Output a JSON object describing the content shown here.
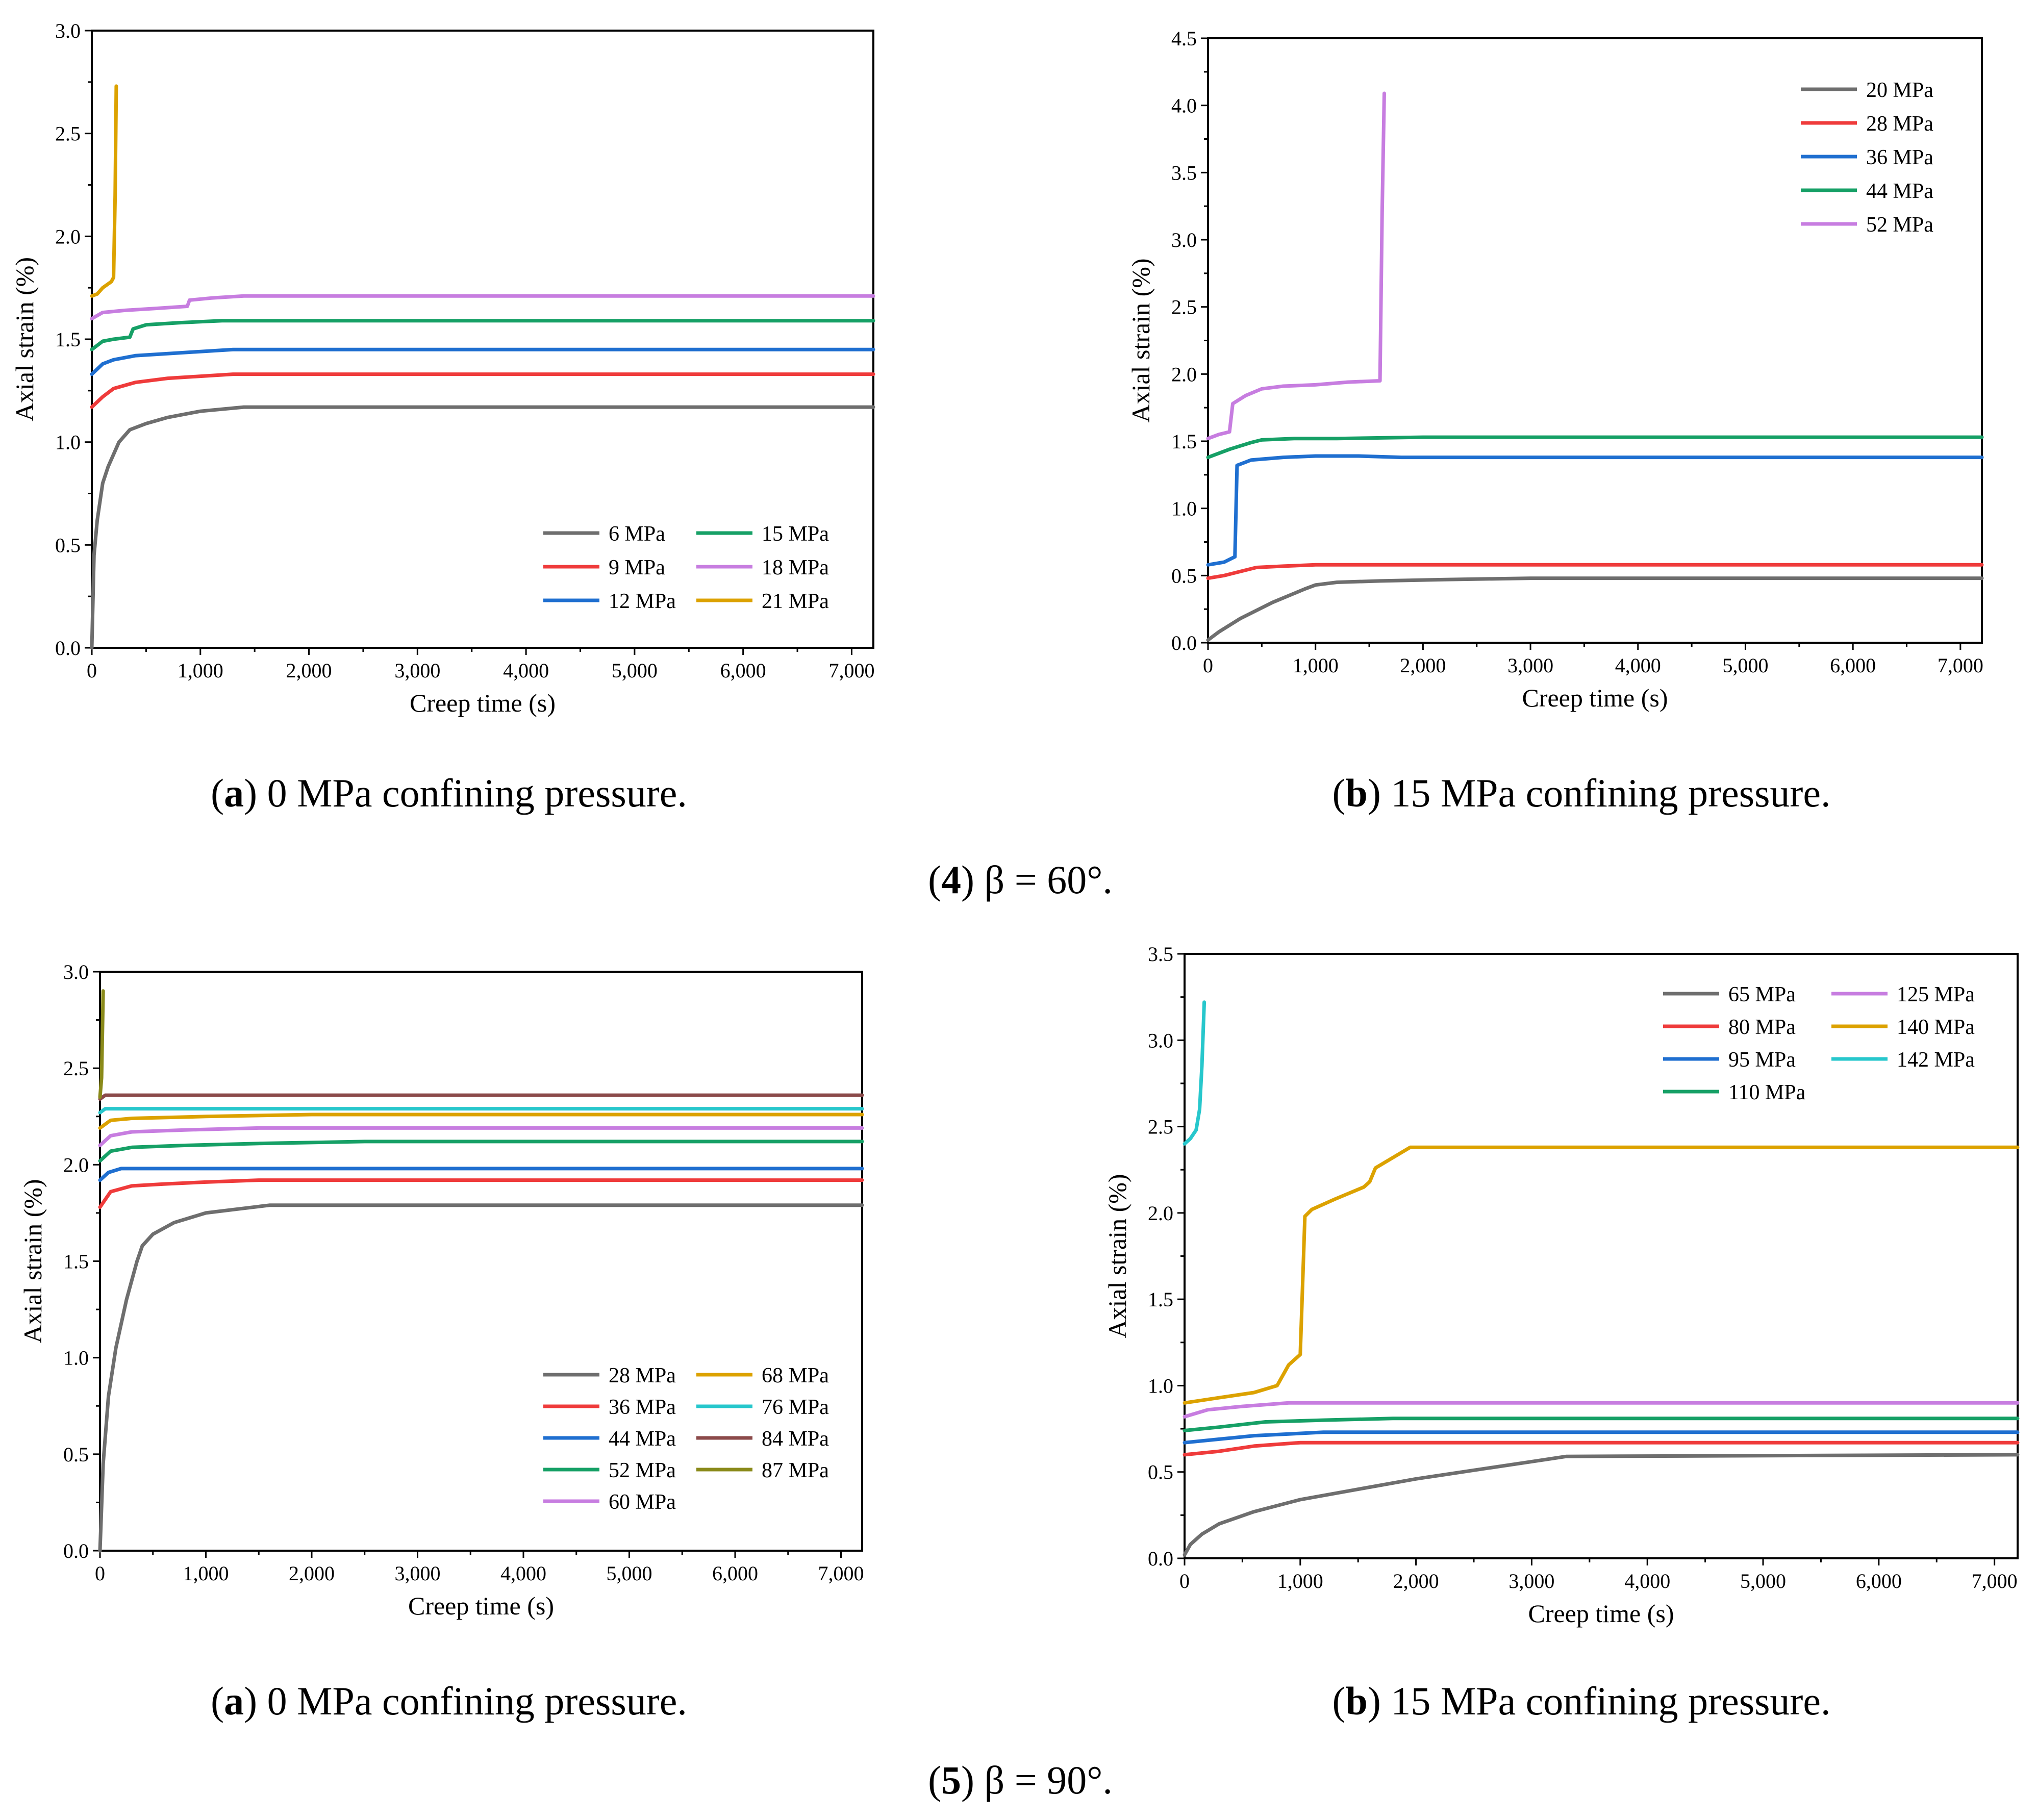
{
  "figure": {
    "groups": [
      {
        "number": "4",
        "symbol": "β",
        "equals": "=",
        "value": "60°."
      },
      {
        "number": "5",
        "symbol": "β",
        "equals": "=",
        "value": "90°."
      }
    ]
  },
  "chart_data": [
    {
      "id": "4a",
      "type": "line",
      "caption": {
        "letter": "a",
        "text": "0 MPa confining pressure."
      },
      "xlabel": "Creep time (s)",
      "ylabel": "Axial strain (%)",
      "xlim": [
        0,
        7200
      ],
      "ylim": [
        0,
        3.0
      ],
      "xticks": [
        0,
        1000,
        2000,
        3000,
        4000,
        5000,
        6000,
        7000
      ],
      "xtick_labels": [
        "0",
        "1,000",
        "2,000",
        "3,000",
        "4,000",
        "5,000",
        "6,000",
        "7,000"
      ],
      "yticks": [
        0,
        0.5,
        1.0,
        1.5,
        2.0,
        2.5,
        3.0
      ],
      "ytick_labels": [
        "0.0",
        "0.5",
        "1.0",
        "1.5",
        "2.0",
        "2.5",
        "3.0"
      ],
      "legend": {
        "position": "bottom-right",
        "columns": 2
      },
      "series": [
        {
          "name": "6 MPa",
          "color": "#6e6e6e",
          "x": [
            0,
            20,
            50,
            100,
            150,
            250,
            350,
            500,
            700,
            1000,
            1400,
            7200
          ],
          "y": [
            0,
            0.45,
            0.62,
            0.8,
            0.88,
            1.0,
            1.06,
            1.09,
            1.12,
            1.15,
            1.17,
            1.17
          ]
        },
        {
          "name": "9 MPa",
          "color": "#ef3b3b",
          "x": [
            0,
            100,
            200,
            400,
            700,
            1000,
            1300,
            7200
          ],
          "y": [
            1.17,
            1.22,
            1.26,
            1.29,
            1.31,
            1.32,
            1.33,
            1.33
          ]
        },
        {
          "name": "12 MPa",
          "color": "#1f6fd0",
          "x": [
            0,
            100,
            200,
            400,
            700,
            1000,
            1300,
            7200
          ],
          "y": [
            1.33,
            1.38,
            1.4,
            1.42,
            1.43,
            1.44,
            1.45,
            1.45
          ]
        },
        {
          "name": "15 MPa",
          "color": "#16a066",
          "x": [
            0,
            100,
            200,
            350,
            380,
            500,
            800,
            1200,
            7200
          ],
          "y": [
            1.45,
            1.49,
            1.5,
            1.51,
            1.55,
            1.57,
            1.58,
            1.59,
            1.59
          ]
        },
        {
          "name": "18 MPa",
          "color": "#c77de0",
          "x": [
            0,
            100,
            300,
            600,
            880,
            900,
            1100,
            1400,
            7200
          ],
          "y": [
            1.6,
            1.63,
            1.64,
            1.65,
            1.66,
            1.69,
            1.7,
            1.71,
            1.71
          ]
        },
        {
          "name": "21 MPa",
          "color": "#dca200",
          "x": [
            0,
            50,
            100,
            180,
            200,
            215,
            225
          ],
          "y": [
            1.71,
            1.72,
            1.75,
            1.78,
            1.8,
            2.2,
            2.73
          ]
        }
      ]
    },
    {
      "id": "4b",
      "type": "line",
      "caption": {
        "letter": "b",
        "text": "15 MPa confining pressure."
      },
      "xlabel": "Creep time (s)",
      "ylabel": "Axial strain (%)",
      "xlim": [
        0,
        7200
      ],
      "ylim": [
        0,
        4.5
      ],
      "xticks": [
        0,
        1000,
        2000,
        3000,
        4000,
        5000,
        6000,
        7000
      ],
      "xtick_labels": [
        "0",
        "1,000",
        "2,000",
        "3,000",
        "4,000",
        "5,000",
        "6,000",
        "7,000"
      ],
      "yticks": [
        0,
        0.5,
        1.0,
        1.5,
        2.0,
        2.5,
        3.0,
        3.5,
        4.0,
        4.5
      ],
      "ytick_labels": [
        "0.0",
        "0.5",
        "1.0",
        "1.5",
        "2.0",
        "2.5",
        "3.0",
        "3.5",
        "4.0",
        "4.5"
      ],
      "legend": {
        "position": "top-right",
        "columns": 1
      },
      "series": [
        {
          "name": "20 MPa",
          "color": "#6e6e6e",
          "x": [
            0,
            100,
            300,
            600,
            900,
            1000,
            1200,
            1600,
            2200,
            3000,
            7200
          ],
          "y": [
            0.02,
            0.08,
            0.18,
            0.3,
            0.4,
            0.43,
            0.45,
            0.46,
            0.47,
            0.48,
            0.48
          ]
        },
        {
          "name": "28 MPa",
          "color": "#ef3b3b",
          "x": [
            0,
            150,
            300,
            450,
            700,
            1000,
            7200
          ],
          "y": [
            0.48,
            0.5,
            0.53,
            0.56,
            0.57,
            0.58,
            0.58
          ]
        },
        {
          "name": "36 MPa",
          "color": "#1f6fd0",
          "x": [
            0,
            150,
            250,
            270,
            400,
            700,
            1000,
            1400,
            1800,
            7200
          ],
          "y": [
            0.58,
            0.6,
            0.64,
            1.32,
            1.36,
            1.38,
            1.39,
            1.39,
            1.38,
            1.38
          ]
        },
        {
          "name": "44 MPa",
          "color": "#16a066",
          "x": [
            0,
            200,
            400,
            500,
            800,
            1200,
            2000,
            7200
          ],
          "y": [
            1.38,
            1.44,
            1.49,
            1.51,
            1.52,
            1.52,
            1.53,
            1.53
          ]
        },
        {
          "name": "52 MPa",
          "color": "#c77de0",
          "x": [
            0,
            100,
            200,
            230,
            350,
            500,
            700,
            1000,
            1300,
            1600,
            1620,
            1640
          ],
          "y": [
            1.52,
            1.55,
            1.57,
            1.78,
            1.84,
            1.89,
            1.91,
            1.92,
            1.94,
            1.95,
            3.2,
            4.09
          ]
        }
      ]
    },
    {
      "id": "5a",
      "type": "line",
      "caption": {
        "letter": "a",
        "text": "0 MPa confining pressure."
      },
      "xlabel": "Creep time (s)",
      "ylabel": "Axial strain (%)",
      "xlim": [
        0,
        7200
      ],
      "ylim": [
        0,
        3.0
      ],
      "xticks": [
        0,
        1000,
        2000,
        3000,
        4000,
        5000,
        6000,
        7000
      ],
      "xtick_labels": [
        "0",
        "1,000",
        "2,000",
        "3,000",
        "4,000",
        "5,000",
        "6,000",
        "7,000"
      ],
      "yticks": [
        0,
        0.5,
        1.0,
        1.5,
        2.0,
        2.5,
        3.0
      ],
      "ytick_labels": [
        "0.0",
        "0.5",
        "1.0",
        "1.5",
        "2.0",
        "2.5",
        "3.0"
      ],
      "legend": {
        "position": "bottom-right",
        "columns": 2
      },
      "series": [
        {
          "name": "28 MPa",
          "color": "#6e6e6e",
          "x": [
            0,
            30,
            80,
            150,
            250,
            350,
            400,
            500,
            700,
            1000,
            1300,
            1600,
            7200
          ],
          "y": [
            0,
            0.45,
            0.8,
            1.05,
            1.3,
            1.5,
            1.58,
            1.64,
            1.7,
            1.75,
            1.77,
            1.79,
            1.79
          ]
        },
        {
          "name": "36 MPa",
          "color": "#ef3b3b",
          "x": [
            0,
            100,
            300,
            600,
            1000,
            1500,
            7200
          ],
          "y": [
            1.78,
            1.86,
            1.89,
            1.9,
            1.91,
            1.92,
            1.92
          ]
        },
        {
          "name": "44 MPa",
          "color": "#1f6fd0",
          "x": [
            0,
            80,
            200,
            7200
          ],
          "y": [
            1.92,
            1.96,
            1.98,
            1.98
          ]
        },
        {
          "name": "52 MPa",
          "color": "#16a066",
          "x": [
            0,
            100,
            300,
            800,
            1500,
            2500,
            7200
          ],
          "y": [
            2.02,
            2.07,
            2.09,
            2.1,
            2.11,
            2.12,
            2.12
          ]
        },
        {
          "name": "60 MPa",
          "color": "#c77de0",
          "x": [
            0,
            100,
            300,
            800,
            1500,
            7200
          ],
          "y": [
            2.1,
            2.15,
            2.17,
            2.18,
            2.19,
            2.19
          ]
        },
        {
          "name": "68 MPa",
          "color": "#dca200",
          "x": [
            0,
            100,
            300,
            1000,
            2000,
            7200
          ],
          "y": [
            2.19,
            2.23,
            2.24,
            2.25,
            2.26,
            2.26
          ]
        },
        {
          "name": "76 MPa",
          "color": "#27c7cc",
          "x": [
            0,
            50,
            7200
          ],
          "y": [
            2.27,
            2.29,
            2.29
          ]
        },
        {
          "name": "84 MPa",
          "color": "#8b4a4a",
          "x": [
            0,
            50,
            7200
          ],
          "y": [
            2.34,
            2.36,
            2.36
          ]
        },
        {
          "name": "87 MPa",
          "color": "#8a8a1a",
          "x": [
            0,
            15,
            25,
            30
          ],
          "y": [
            2.35,
            2.45,
            2.75,
            2.9
          ]
        }
      ]
    },
    {
      "id": "5b",
      "type": "line",
      "caption": {
        "letter": "b",
        "text": "15 MPa confining pressure."
      },
      "xlabel": "Creep time (s)",
      "ylabel": "Axial strain (%)",
      "xlim": [
        0,
        7200
      ],
      "ylim": [
        0,
        3.5
      ],
      "xticks": [
        0,
        1000,
        2000,
        3000,
        4000,
        5000,
        6000,
        7000
      ],
      "xtick_labels": [
        "0",
        "1,000",
        "2,000",
        "3,000",
        "4,000",
        "5,000",
        "6,000",
        "7,000"
      ],
      "yticks": [
        0,
        0.5,
        1.0,
        1.5,
        2.0,
        2.5,
        3.0,
        3.5
      ],
      "ytick_labels": [
        "0.0",
        "0.5",
        "1.0",
        "1.5",
        "2.0",
        "2.5",
        "3.0",
        "3.5"
      ],
      "legend": {
        "position": "top-right",
        "columns": 2
      },
      "series": [
        {
          "name": "65 MPa",
          "color": "#6e6e6e",
          "x": [
            0,
            50,
            150,
            300,
            600,
            1000,
            1500,
            2000,
            2500,
            3000,
            3300,
            7200
          ],
          "y": [
            0.02,
            0.08,
            0.14,
            0.2,
            0.27,
            0.34,
            0.4,
            0.46,
            0.51,
            0.56,
            0.59,
            0.6
          ]
        },
        {
          "name": "80 MPa",
          "color": "#ef3b3b",
          "x": [
            0,
            300,
            600,
            800,
            1000,
            7200
          ],
          "y": [
            0.6,
            0.62,
            0.65,
            0.66,
            0.67,
            0.67
          ]
        },
        {
          "name": "95 MPa",
          "color": "#1f6fd0",
          "x": [
            0,
            300,
            600,
            900,
            1200,
            7200
          ],
          "y": [
            0.67,
            0.69,
            0.71,
            0.72,
            0.73,
            0.73
          ]
        },
        {
          "name": "110 MPa",
          "color": "#16a066",
          "x": [
            0,
            300,
            700,
            1200,
            1800,
            7200
          ],
          "y": [
            0.74,
            0.76,
            0.79,
            0.8,
            0.81,
            0.81
          ]
        },
        {
          "name": "125 MPa",
          "color": "#c77de0",
          "x": [
            0,
            200,
            500,
            900,
            1500,
            7200
          ],
          "y": [
            0.82,
            0.86,
            0.88,
            0.9,
            0.9,
            0.9
          ]
        },
        {
          "name": "140 MPa",
          "color": "#dca200",
          "x": [
            0,
            300,
            600,
            800,
            900,
            1000,
            1040,
            1100,
            1300,
            1550,
            1600,
            1650,
            1800,
            1950,
            7200
          ],
          "y": [
            0.9,
            0.93,
            0.96,
            1.0,
            1.12,
            1.18,
            1.98,
            2.02,
            2.08,
            2.15,
            2.18,
            2.26,
            2.32,
            2.38,
            2.38
          ]
        },
        {
          "name": "142 MPa",
          "color": "#27c7cc",
          "x": [
            0,
            50,
            100,
            130,
            150,
            170
          ],
          "y": [
            2.4,
            2.43,
            2.48,
            2.6,
            2.85,
            3.22
          ]
        }
      ]
    }
  ]
}
